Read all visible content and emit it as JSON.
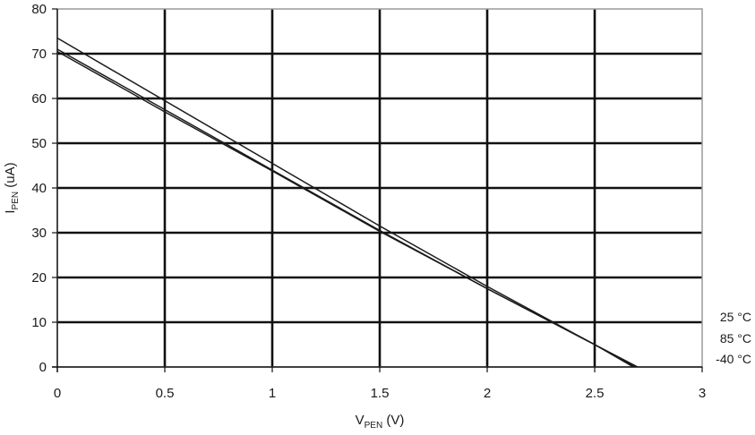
{
  "chart_data": {
    "type": "line",
    "title": "",
    "xlabel": {
      "main": "V",
      "sub": "PEN",
      "suffix": " (V)"
    },
    "ylabel": {
      "main": "I",
      "sub": "PEN",
      "suffix": " (uA)"
    },
    "xlim": [
      0,
      3
    ],
    "ylim": [
      0,
      80
    ],
    "x_ticks": [
      "0",
      "0.5",
      "1",
      "1.5",
      "2",
      "2.5",
      "3"
    ],
    "x_tick_values": [
      0,
      0.5,
      1,
      1.5,
      2,
      2.5,
      3
    ],
    "y_ticks": [
      "0",
      "10",
      "20",
      "30",
      "40",
      "50",
      "60",
      "70",
      "80"
    ],
    "y_tick_values": [
      0,
      10,
      20,
      30,
      40,
      50,
      60,
      70,
      80
    ],
    "grid": true,
    "legend_placement": "right, near bottom",
    "series": [
      {
        "name": "25 °C",
        "x": [
          0,
          0.5,
          1,
          1.5,
          2,
          2.5,
          2.7
        ],
        "y": [
          73.5,
          59.5,
          45.5,
          31.5,
          18,
          5,
          0
        ]
      },
      {
        "name": "85 °C",
        "x": [
          0,
          0.5,
          1,
          1.5,
          2,
          2.5,
          2.69
        ],
        "y": [
          71,
          57.5,
          44,
          30.5,
          17.5,
          5,
          0
        ]
      },
      {
        "name": "-40 °C",
        "x": [
          0,
          0.5,
          1,
          1.5,
          2,
          2.5,
          2.68
        ],
        "y": [
          70.5,
          57,
          43.8,
          30.3,
          17.5,
          5,
          0
        ]
      }
    ]
  }
}
